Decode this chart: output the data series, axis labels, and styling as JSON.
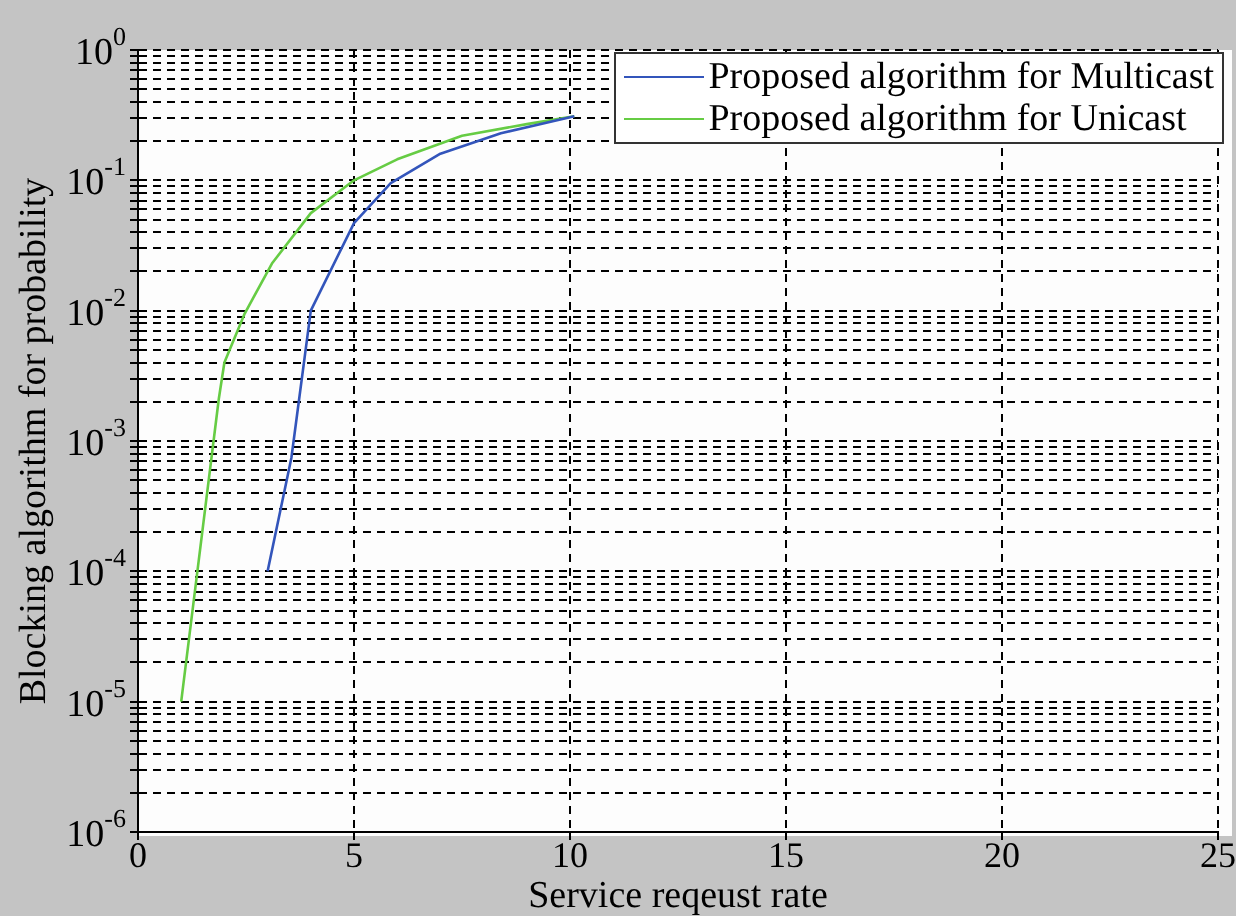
{
  "chart_data": {
    "type": "line",
    "xlabel": "Service reqeust rate",
    "ylabel": "Blocking algorithm for probability",
    "log": "y",
    "grid": true,
    "legend": "top right",
    "marker": "none",
    "line_style": "solid",
    "xlim": [
      0,
      25
    ],
    "xticks": [
      0,
      5,
      10,
      15,
      20,
      25
    ],
    "ylim": [
      1e-06,
      1
    ],
    "yticks": [
      {
        "value": 1e-06,
        "label": "10$^{-6}$"
      },
      {
        "value": 2e-06,
        "label": null
      },
      {
        "value": 3e-06,
        "label": null
      },
      {
        "value": 4e-06,
        "label": null
      },
      {
        "value": 5e-06,
        "label": null
      },
      {
        "value": 6e-06,
        "label": null
      },
      {
        "value": 7e-06,
        "label": null
      },
      {
        "value": 8e-06,
        "label": null
      },
      {
        "value": 9e-06,
        "label": null
      },
      {
        "value": 1e-05,
        "label": "10$^{-5}$"
      },
      {
        "value": 2e-05,
        "label": null
      },
      {
        "value": 3e-05,
        "label": null
      },
      {
        "value": 4e-05,
        "label": null
      },
      {
        "value": 5e-05,
        "label": null
      },
      {
        "value": 6e-05,
        "label": null
      },
      {
        "value": 7e-05,
        "label": null
      },
      {
        "value": 8e-05,
        "label": null
      },
      {
        "value": 9e-05,
        "label": null
      },
      {
        "value": 0.0001,
        "label": "10$^{-4}$"
      },
      {
        "value": 0.0002,
        "label": null
      },
      {
        "value": 0.0003,
        "label": null
      },
      {
        "value": 0.0004,
        "label": null
      },
      {
        "value": 0.0005,
        "label": null
      },
      {
        "value": 0.0006,
        "label": null
      },
      {
        "value": 0.0007,
        "label": null
      },
      {
        "value": 0.0008,
        "label": null
      },
      {
        "value": 0.0009,
        "label": null
      },
      {
        "value": 0.001,
        "label": "10$^{-3}$"
      },
      {
        "value": 0.002,
        "label": null
      },
      {
        "value": 0.003,
        "label": null
      },
      {
        "value": 0.004,
        "label": null
      },
      {
        "value": 0.005,
        "label": null
      },
      {
        "value": 0.006,
        "label": null
      },
      {
        "value": 0.007,
        "label": null
      },
      {
        "value": 0.008,
        "label": null
      },
      {
        "value": 0.009,
        "label": null
      },
      {
        "value": 0.01,
        "label": "10$^{-2}$"
      },
      {
        "value": 0.02,
        "label": null
      },
      {
        "value": 0.03,
        "label": null
      },
      {
        "value": 0.04,
        "label": null
      },
      {
        "value": 0.05,
        "label": null
      },
      {
        "value": 0.06,
        "label": null
      },
      {
        "value": 0.07,
        "label": null
      },
      {
        "value": 0.08,
        "label": null
      },
      {
        "value": 0.09,
        "label": null
      },
      {
        "value": 0.1,
        "label": "10$^{-1}$"
      },
      {
        "value": 0.2,
        "label": null
      },
      {
        "value": 0.3,
        "label": null
      },
      {
        "value": 0.4,
        "label": null
      },
      {
        "value": 0.5,
        "label": null
      },
      {
        "value": 0.6,
        "label": null
      },
      {
        "value": 0.7,
        "label": null
      },
      {
        "value": 0.8,
        "label": null
      },
      {
        "value": 0.9,
        "label": null
      },
      {
        "value": 1,
        "label": "10$^{0}$"
      }
    ],
    "series": [
      {
        "name": "Proposed algorithm for Multicast",
        "color": "#3355bb",
        "x": [
          3,
          3.55,
          4,
          5,
          5.85,
          7,
          8.4,
          10.1
        ],
        "values": [
          0.0001,
          0.00074,
          0.01,
          0.047,
          0.095,
          0.16,
          0.23,
          0.31
        ]
      },
      {
        "name": "Proposed algorithm for Unicast",
        "color": "#66cc44",
        "x": [
          1,
          1.87,
          2,
          2.47,
          3.1,
          4,
          5,
          6,
          7.5,
          9,
          10.1
        ],
        "values": [
          1e-05,
          0.0021,
          0.004,
          0.0095,
          0.023,
          0.056,
          0.1,
          0.145,
          0.22,
          0.27,
          0.31
        ]
      }
    ]
  }
}
